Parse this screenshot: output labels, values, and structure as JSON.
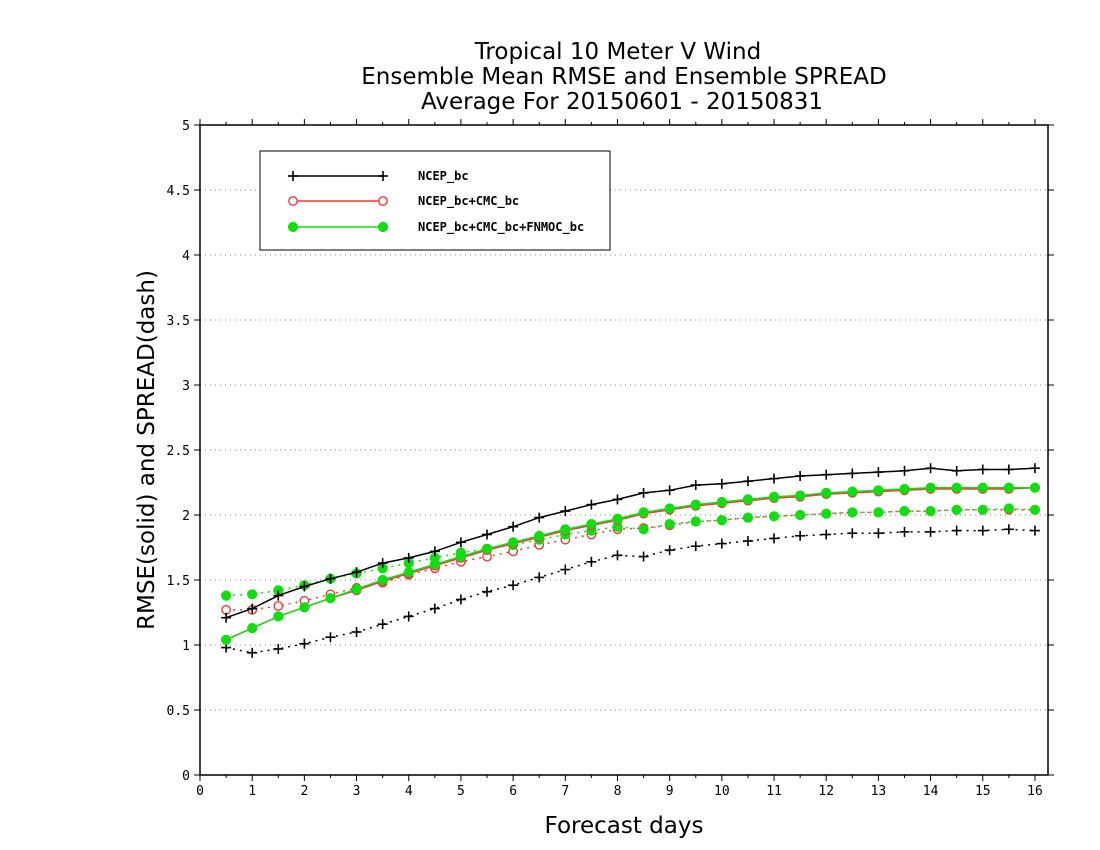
{
  "chart_data": {
    "type": "line",
    "title": [
      "Tropical 10 Meter V Wind",
      "Ensemble Mean RMSE and Ensemble SPREAD",
      "Average For 20150601 - 20150831"
    ],
    "xlabel": "Forecast days",
    "ylabel": "RMSE(solid) and SPREAD(dash)",
    "xlim": [
      0,
      16.25
    ],
    "ylim": [
      0,
      5
    ],
    "xticks": [
      0,
      1,
      2,
      3,
      4,
      5,
      6,
      7,
      8,
      9,
      10,
      11,
      12,
      13,
      14,
      15,
      16
    ],
    "yticks": [
      0,
      0.5,
      1,
      1.5,
      2,
      2.5,
      3,
      3.5,
      4,
      4.5,
      5
    ],
    "ytick_labels": [
      "0",
      "0.5",
      "1",
      "1.5",
      "2",
      "2.5",
      "3",
      "3.5",
      "4",
      "4.5",
      "5"
    ],
    "grid": "horizontal dotted",
    "legend_position": "top-left",
    "x": [
      0.5,
      1,
      1.5,
      2,
      2.5,
      3,
      3.5,
      4,
      4.5,
      5,
      5.5,
      6,
      6.5,
      7,
      7.5,
      8,
      8.5,
      9,
      9.5,
      10,
      10.5,
      11,
      11.5,
      12,
      12.5,
      13,
      13.5,
      14,
      14.5,
      15,
      15.5,
      16
    ],
    "series": [
      {
        "name": "NCEP_bc",
        "color": "#000000",
        "marker": "plus",
        "rmse": [
          1.21,
          1.28,
          1.38,
          1.45,
          1.51,
          1.56,
          1.63,
          1.67,
          1.72,
          1.79,
          1.85,
          1.91,
          1.98,
          2.03,
          2.08,
          2.12,
          2.17,
          2.19,
          2.23,
          2.24,
          2.26,
          2.28,
          2.3,
          2.31,
          2.32,
          2.33,
          2.34,
          2.36,
          2.34,
          2.35,
          2.35,
          2.36
        ],
        "spread": [
          0.98,
          0.94,
          0.97,
          1.01,
          1.06,
          1.1,
          1.16,
          1.22,
          1.28,
          1.35,
          1.41,
          1.46,
          1.52,
          1.58,
          1.64,
          1.69,
          1.68,
          1.73,
          1.76,
          1.78,
          1.8,
          1.82,
          1.84,
          1.85,
          1.86,
          1.86,
          1.87,
          1.87,
          1.88,
          1.88,
          1.89,
          1.88
        ]
      },
      {
        "name": "NCEP_bc+CMC_bc",
        "color": "#ee3b3b",
        "marker": "open-circle",
        "rmse": [
          1.04,
          1.13,
          1.22,
          1.29,
          1.36,
          1.42,
          1.49,
          1.55,
          1.61,
          1.67,
          1.73,
          1.78,
          1.83,
          1.88,
          1.92,
          1.96,
          2.01,
          2.04,
          2.07,
          2.09,
          2.11,
          2.13,
          2.14,
          2.16,
          2.17,
          2.18,
          2.19,
          2.2,
          2.2,
          2.2,
          2.2,
          2.21
        ],
        "spread": [
          1.27,
          1.27,
          1.3,
          1.34,
          1.39,
          1.44,
          1.48,
          1.54,
          1.59,
          1.64,
          1.68,
          1.72,
          1.77,
          1.81,
          1.85,
          1.89,
          1.9,
          1.92,
          1.95,
          1.96,
          1.98,
          1.99,
          2.0,
          2.01,
          2.02,
          2.02,
          2.03,
          2.03,
          2.04,
          2.04,
          2.04,
          2.04
        ]
      },
      {
        "name": "NCEP_bc+CMC_bc+FNMOC_bc",
        "color": "#11dd11",
        "marker": "filled-circle",
        "rmse": [
          1.04,
          1.13,
          1.22,
          1.29,
          1.36,
          1.43,
          1.5,
          1.56,
          1.62,
          1.68,
          1.74,
          1.79,
          1.84,
          1.89,
          1.93,
          1.97,
          2.02,
          2.05,
          2.08,
          2.1,
          2.12,
          2.14,
          2.15,
          2.17,
          2.18,
          2.19,
          2.2,
          2.21,
          2.21,
          2.21,
          2.21,
          2.21
        ],
        "spread": [
          1.38,
          1.39,
          1.42,
          1.46,
          1.51,
          1.55,
          1.59,
          1.63,
          1.67,
          1.71,
          1.74,
          1.77,
          1.81,
          1.85,
          1.88,
          1.91,
          1.89,
          1.93,
          1.95,
          1.96,
          1.98,
          1.99,
          2.0,
          2.01,
          2.02,
          2.02,
          2.03,
          2.03,
          2.04,
          2.04,
          2.05,
          2.04
        ]
      }
    ]
  }
}
